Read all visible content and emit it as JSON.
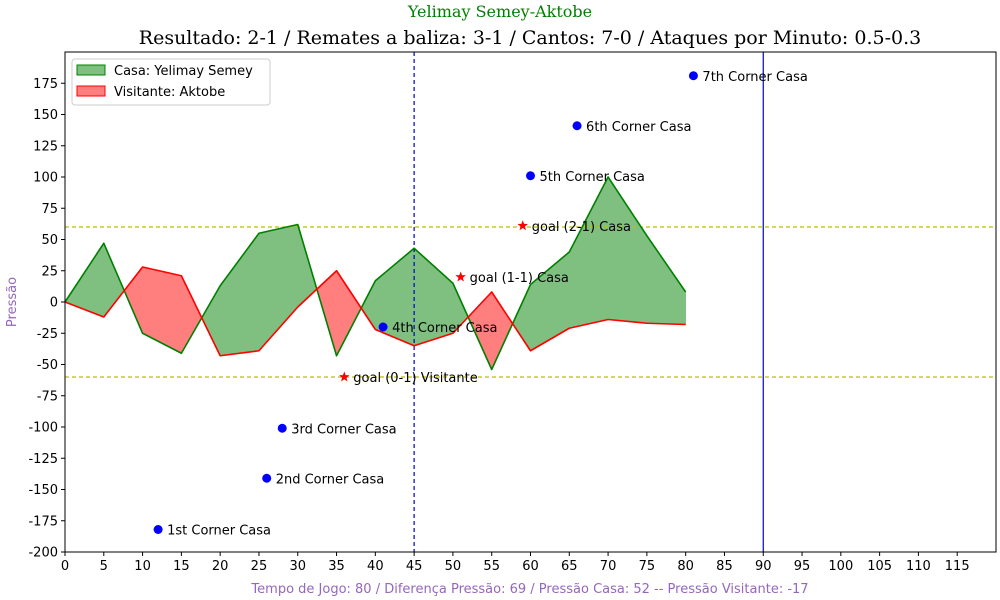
{
  "chart_data": {
    "type": "area",
    "suptitle": "Yelimay Semey-Aktobe",
    "title": "Resultado: 2-1 / Remates a baliza: 3-1 / Cantos: 7-0 / Ataques por Minuto: 0.5-0.3",
    "xlabel": "Tempo de Jogo: 80 / Diferença Pressão: 69 / Pressão Casa: 52 -- Pressão Visitante: -17",
    "ylabel": "Pressão",
    "xlim": [
      0,
      120
    ],
    "ylim": [
      -200,
      200
    ],
    "x_ticks": [
      0,
      5,
      10,
      15,
      20,
      25,
      30,
      35,
      40,
      45,
      50,
      55,
      60,
      65,
      70,
      75,
      80,
      85,
      90,
      95,
      100,
      105,
      110,
      115
    ],
    "y_ticks": [
      -200,
      -175,
      -150,
      -125,
      -100,
      -75,
      -50,
      -25,
      0,
      25,
      50,
      75,
      100,
      125,
      150,
      175
    ],
    "legend_position": "upper-left",
    "series": [
      {
        "name": "Casa: Yelimay Semey",
        "line_color": "#008000",
        "fill_color": "#7fbf7f",
        "x": [
          0,
          5,
          10,
          15,
          20,
          25,
          30,
          35,
          40,
          45,
          50,
          55,
          60,
          65,
          70,
          75,
          80
        ],
        "values": [
          0,
          47,
          -25,
          -41,
          13,
          55,
          62,
          -43,
          17,
          43,
          15,
          -54,
          14,
          40,
          100,
          53,
          8
        ]
      },
      {
        "name": "Visitante: Aktobe",
        "line_color": "#ff0000",
        "fill_color": "#ff7f7f",
        "x": [
          0,
          5,
          10,
          15,
          20,
          25,
          30,
          35,
          40,
          45,
          50,
          55,
          60,
          65,
          70,
          75,
          80
        ],
        "values": [
          0,
          -12,
          28,
          21,
          -43,
          -39,
          -4,
          25,
          -22,
          -35,
          -25,
          8,
          -39,
          -21,
          -14,
          -17,
          -18
        ]
      }
    ],
    "reference_lines": {
      "horizontal": [
        {
          "y": 60,
          "color": "#bfbf00",
          "style": "dashed"
        },
        {
          "y": -60,
          "color": "#bfbf00",
          "style": "dashed"
        }
      ],
      "vertical": [
        {
          "x": 45,
          "color": "#0000cc",
          "style": "dashed"
        },
        {
          "x": 90,
          "color": "#0000cc",
          "style": "solid"
        }
      ]
    },
    "events": [
      {
        "type": "corner",
        "x": 12,
        "y": -182,
        "label": "1st Corner Casa"
      },
      {
        "type": "corner",
        "x": 26,
        "y": -141,
        "label": "2nd Corner Casa"
      },
      {
        "type": "corner",
        "x": 28,
        "y": -101,
        "label": "3rd Corner Casa"
      },
      {
        "type": "corner",
        "x": 41,
        "y": -20,
        "label": "4th Corner Casa"
      },
      {
        "type": "corner",
        "x": 60,
        "y": 101,
        "label": "5th Corner Casa"
      },
      {
        "type": "corner",
        "x": 66,
        "y": 141,
        "label": "6th Corner Casa"
      },
      {
        "type": "corner",
        "x": 81,
        "y": 181,
        "label": "7th Corner Casa"
      },
      {
        "type": "goal",
        "x": 36,
        "y": -60,
        "label": "goal (0-1) Visitante"
      },
      {
        "type": "goal",
        "x": 51,
        "y": 20,
        "label": "goal (1-1) Casa"
      },
      {
        "type": "goal",
        "x": 59,
        "y": 61,
        "label": "goal (2-1) Casa"
      }
    ],
    "colors": {
      "suptitle": "#008000",
      "xlabel": "#9467bd",
      "ylabel": "#9467bd",
      "corner_marker": "#0000ff",
      "goal_marker": "#ff0000"
    }
  }
}
